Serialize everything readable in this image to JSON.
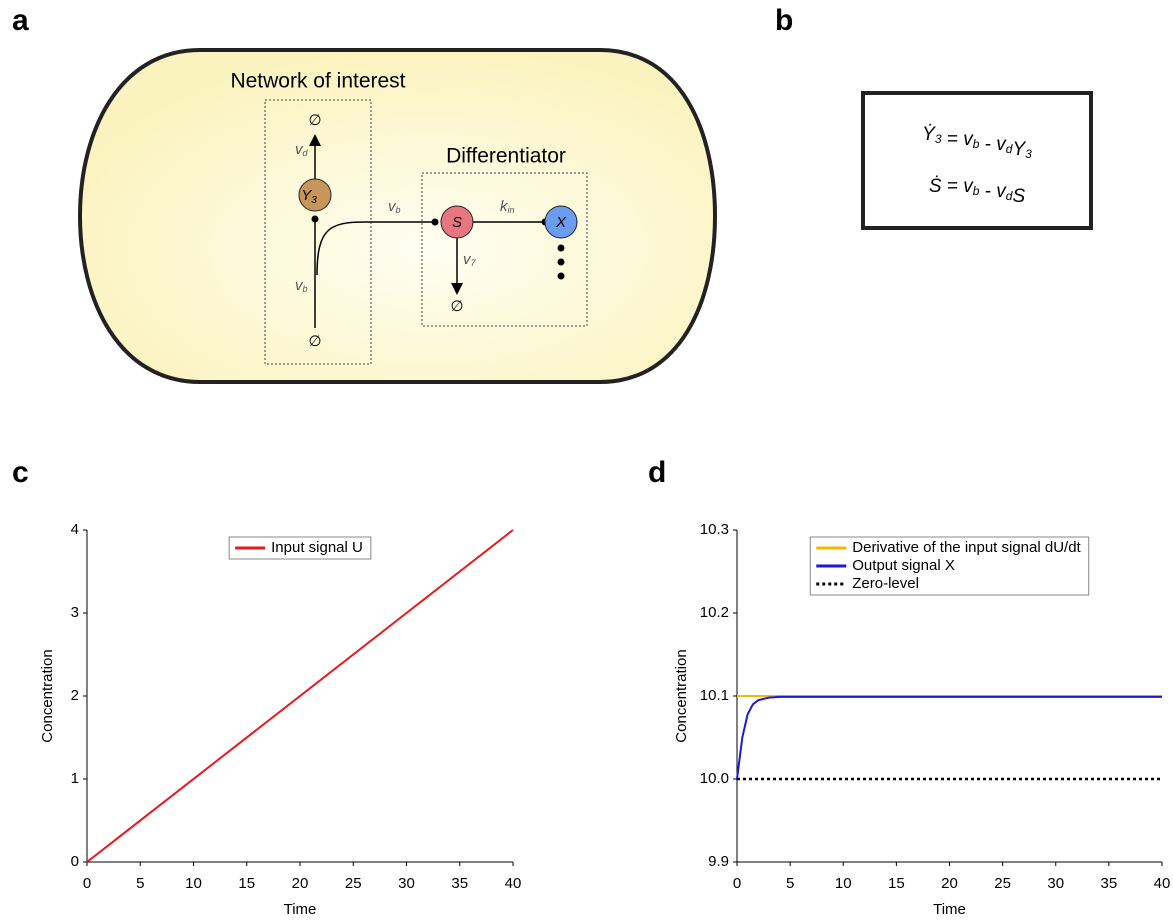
{
  "panel_labels": [
    "a",
    "b",
    "c",
    "d"
  ],
  "diagram": {
    "network_title": "Network of interest",
    "differentiator_title": "Differentiator",
    "nodes": [
      {
        "base": "Y",
        "sub": "3"
      },
      {
        "base": "S"
      },
      {
        "base": "X"
      }
    ],
    "edge_labels": [
      {
        "base": "v",
        "sub": "d"
      },
      {
        "base": "v",
        "sub": "b"
      },
      {
        "base": "v",
        "sub": "b"
      },
      {
        "base": "k",
        "sub": "in"
      },
      {
        "base": "v",
        "sub": "7"
      }
    ],
    "sinks": [
      "∅",
      "∅",
      "∅"
    ]
  },
  "equations": [
    [
      {
        "text": "Ẏ",
        "sub": "3"
      },
      {
        "text": " = "
      },
      {
        "text": "v",
        "sub": "b"
      },
      {
        "text": " - "
      },
      {
        "text": "v",
        "sub": "d"
      },
      {
        "text": "Y",
        "sub": "3"
      }
    ],
    [
      {
        "text": "Ṡ"
      },
      {
        "text": " = "
      },
      {
        "text": "v",
        "sub": "b"
      },
      {
        "text": " - "
      },
      {
        "text": "v",
        "sub": "d"
      },
      {
        "text": "S"
      }
    ]
  ],
  "chart_data": [
    {
      "type": "line",
      "x_label": "Time",
      "y_label": "Concentration",
      "x": [
        0,
        40
      ],
      "series": [
        {
          "name": "Input signal U",
          "color": "#e8191c",
          "values": [
            0,
            4
          ]
        }
      ],
      "xlim": [
        0,
        40
      ],
      "xticks": [
        0,
        5,
        10,
        15,
        20,
        25,
        30,
        35,
        40
      ],
      "ylim": [
        0,
        4
      ],
      "yticks": [
        0,
        1,
        2,
        3,
        4
      ],
      "legend": "upper center"
    },
    {
      "type": "line",
      "x_label": "Time",
      "y_label": "Concentration",
      "x": [
        0,
        0.5,
        1,
        1.5,
        2,
        3,
        4,
        6,
        40
      ],
      "series": [
        {
          "name": "Derivative of the input signal dU/dt",
          "color": "#f5b800",
          "values": [
            10.1,
            10.1,
            10.1,
            10.1,
            10.1,
            10.1,
            10.1,
            10.1,
            10.1
          ]
        },
        {
          "name": "Output signal X",
          "color": "#1a1adc",
          "values": [
            10.0,
            10.05,
            10.078,
            10.09,
            10.095,
            10.098,
            10.099,
            10.099,
            10.099
          ]
        },
        {
          "name": "Zero-level",
          "color": "#000000",
          "linestyle": "dotted",
          "values": [
            10.0,
            10.0,
            10.0,
            10.0,
            10.0,
            10.0,
            10.0,
            10.0,
            10.0
          ]
        }
      ],
      "xlim": [
        0,
        40
      ],
      "xticks": [
        0,
        5,
        10,
        15,
        20,
        25,
        30,
        35,
        40
      ],
      "ylim": [
        9.9,
        10.3
      ],
      "yticks": [
        9.9,
        {
          "value": 10,
          "label": "10.0"
        },
        10.1,
        10.2,
        10.3
      ],
      "legend": "upper center"
    }
  ]
}
